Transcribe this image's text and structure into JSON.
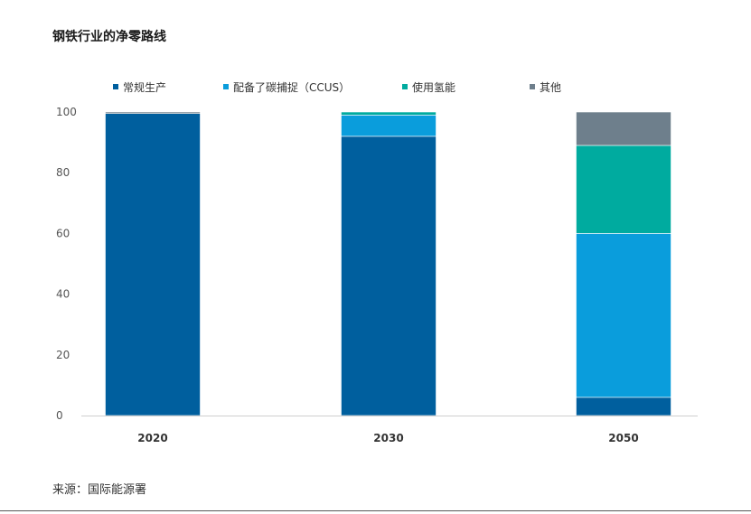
{
  "header": {
    "title": "钢铁行业的净零路线"
  },
  "footer": {
    "source": "来源：国际能源署"
  },
  "chart_data": {
    "type": "bar",
    "stacked": true,
    "title": "钢铁行业的净零路线",
    "xlabel": "",
    "ylabel": "",
    "categories": [
      "2020",
      "2030",
      "2050"
    ],
    "ylim": [
      0,
      100
    ],
    "yticks": [
      0,
      20,
      40,
      60,
      80,
      100
    ],
    "grid": false,
    "legend_position": "top",
    "series": [
      {
        "name": "常规生产",
        "color": "#005f9e",
        "values": [
          99.5,
          92,
          6
        ]
      },
      {
        "name": "配备了碳捕捉（CCUS）",
        "color": "#0a9ddc",
        "values": [
          0,
          7,
          54
        ]
      },
      {
        "name": "使用氢能",
        "color": "#00ab9f",
        "values": [
          0,
          1,
          29
        ]
      },
      {
        "name": "其他",
        "color": "#6e7f8c",
        "values": [
          0.5,
          0,
          11
        ]
      }
    ]
  }
}
